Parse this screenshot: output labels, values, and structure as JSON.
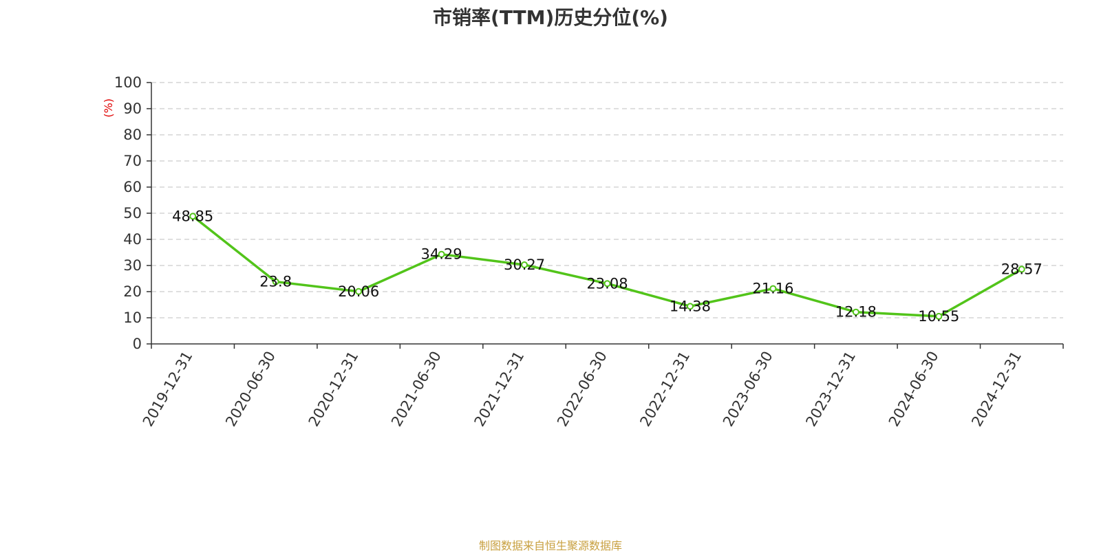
{
  "chart_data": {
    "type": "line",
    "title": "市销率(TTM)历史分位(%)",
    "ylabel": "(%)",
    "xlabel": "",
    "categories": [
      "2019-12-31",
      "2020-06-30",
      "2020-12-31",
      "2021-06-30",
      "2021-12-31",
      "2022-06-30",
      "2022-12-31",
      "2023-06-30",
      "2023-12-31",
      "2024-06-30",
      "2024-12-31"
    ],
    "values": [
      48.85,
      23.8,
      20.06,
      34.29,
      30.27,
      23.08,
      14.38,
      21.16,
      12.18,
      10.55,
      28.57
    ],
    "value_labels": [
      "48.85",
      "23.8",
      "20.06",
      "34.29",
      "30.27",
      "23.08",
      "14.38",
      "21.16",
      "12.18",
      "10.55",
      "28.57"
    ],
    "ylim": [
      0,
      100
    ],
    "yticks": [
      0,
      10,
      20,
      30,
      40,
      50,
      60,
      70,
      80,
      90,
      100
    ],
    "grid": "horizontal-dashed",
    "legend": "none",
    "colors": {
      "line": "#52c41a",
      "ylabel": "#e00000",
      "grid": "#cccccc",
      "axis": "#333333"
    }
  },
  "source_note": "制图数据来自恒生聚源数据库"
}
